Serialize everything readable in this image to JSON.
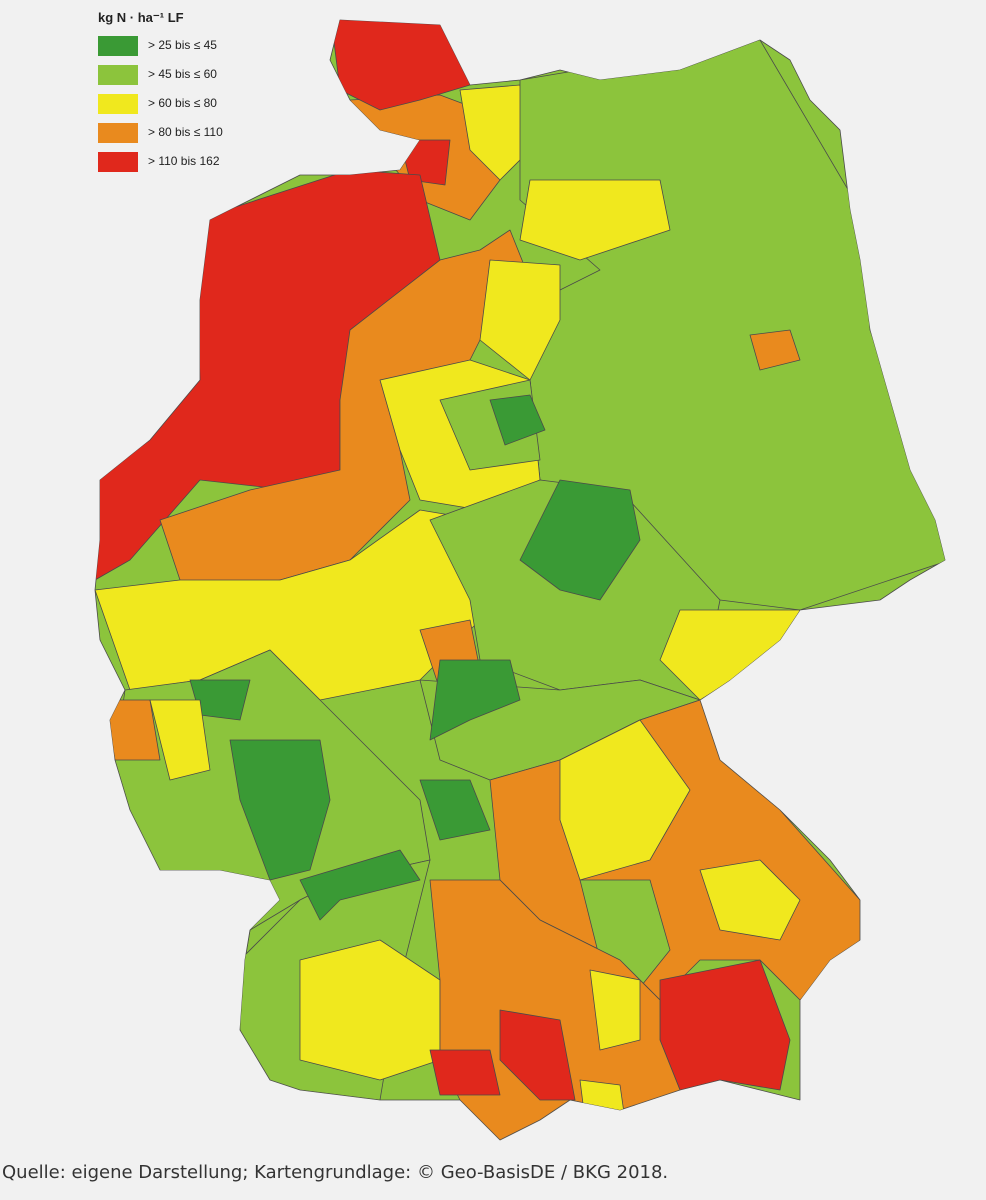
{
  "legend": {
    "title": "kg N · ha⁻¹ LF",
    "items": [
      {
        "label": "> 25 bis ≤ 45",
        "color": "#3a9a35"
      },
      {
        "label": "> 45 bis ≤ 60",
        "color": "#8cc43c"
      },
      {
        "label": "> 60 bis ≤ 80",
        "color": "#f0e81e"
      },
      {
        "label": "> 80 bis ≤ 110",
        "color": "#e98a1e"
      },
      {
        "label": "> 110 bis 162",
        "color": "#e0281c"
      }
    ]
  },
  "source": "Quelle: eigene Darstellung; Kartengrundlage: © Geo-BasisDE / BKG 2018."
}
